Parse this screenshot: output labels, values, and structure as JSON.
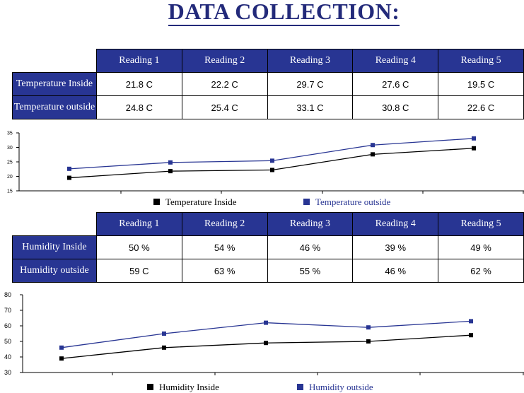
{
  "page": {
    "title": "DATA COLLECTION:"
  },
  "table1": {
    "headers": [
      "Reading 1",
      "Reading 2",
      "Reading 3",
      "Reading 4",
      "Reading 5"
    ],
    "rows": [
      {
        "label": "Temperature Inside",
        "values": [
          "21.8 C",
          "22.2 C",
          "29.7 C",
          "27.6 C",
          "19.5 C"
        ]
      },
      {
        "label": "Temperature outside",
        "values": [
          "24.8 C",
          "25.4 C",
          "33.1 C",
          "30.8 C",
          "22.6 C"
        ]
      }
    ]
  },
  "table2": {
    "headers": [
      "Reading 1",
      "Reading 2",
      "Reading 3",
      "Reading 4",
      "Reading 5"
    ],
    "rows": [
      {
        "label": "Humidity Inside",
        "values": [
          "50 %",
          "54 %",
          "46 %",
          "39 %",
          "49 %"
        ]
      },
      {
        "label": "Humidity outside",
        "values": [
          "59 C",
          "63 %",
          "55 %",
          "46 %",
          "62 %"
        ]
      }
    ]
  },
  "chart_data": [
    {
      "type": "line",
      "title": "",
      "xlabel": "",
      "ylabel": "",
      "x": [
        1,
        2,
        3,
        4,
        5
      ],
      "ylim": [
        15,
        35
      ],
      "yticks": [
        "15",
        "20",
        "25",
        "30",
        "35"
      ],
      "grid": false,
      "legend_position": "bottom",
      "series": [
        {
          "name": "Temperature Inside",
          "color": "#000000",
          "values": [
            19.5,
            21.8,
            22.2,
            27.6,
            29.7
          ]
        },
        {
          "name": "Temperature outside",
          "color": "#283593",
          "values": [
            22.6,
            24.8,
            25.4,
            30.8,
            33.1
          ]
        }
      ]
    },
    {
      "type": "line",
      "title": "",
      "xlabel": "",
      "ylabel": "",
      "x": [
        1,
        2,
        3,
        4,
        5
      ],
      "ylim": [
        30,
        80
      ],
      "yticks": [
        "30",
        "40",
        "50",
        "60",
        "70",
        "80"
      ],
      "grid": false,
      "legend_position": "bottom",
      "series": [
        {
          "name": "Humidity Inside",
          "color": "#000000",
          "values": [
            39,
            46,
            49,
            50,
            54
          ]
        },
        {
          "name": "Humidity outside",
          "color": "#283593",
          "values": [
            46,
            55,
            62,
            59,
            63
          ]
        }
      ]
    }
  ]
}
